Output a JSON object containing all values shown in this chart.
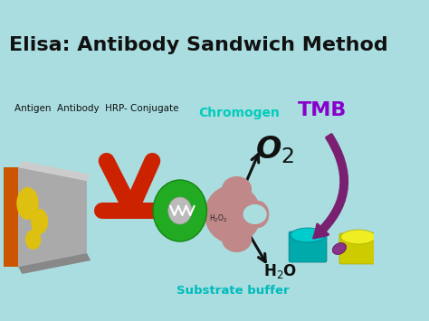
{
  "title": "Elisa: Antibody Sandwich Method",
  "bg_color": "#aadde0",
  "title_color": "#111111",
  "title_fontsize": 16,
  "legend_text": "Antigen  Antibody  HRP- Conjugate",
  "legend_color": "#111111",
  "legend_fontsize": 7.5,
  "chromogen_text": "Chromogen",
  "chromogen_color": "#00ccbb",
  "tmb_text": "TMB",
  "tmb_color": "#8800cc",
  "substrate_text": "Substrate buffer",
  "substrate_color": "#00bbbb",
  "arrow_color": "#111111",
  "curve_arrow_color": "#7a2070",
  "yellow_blob_color": "#ddc010",
  "antibody_color": "#cc2200",
  "hrp_ring_color": "#22aa22",
  "h2o2_body_color": "#c08888",
  "teal_circle_color": "#00aaaa",
  "yellow_circle_color": "#cccc00",
  "connector_color": "#883388",
  "orange_wall_color": "#cc5500",
  "gray_tray_color": "#aaaaaa",
  "gray_tray_dark": "#888888",
  "gray_tray_light": "#cccccc"
}
